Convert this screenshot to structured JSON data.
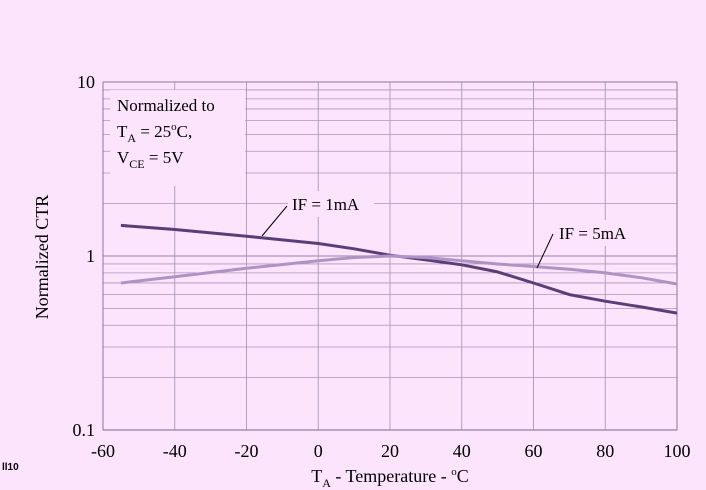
{
  "chart_data": {
    "type": "line",
    "title": "",
    "xlabel": {
      "main": "T",
      "sub": "A",
      "rest": " - Temperature - ",
      "sup": "o",
      "tail": "C"
    },
    "ylabel": "Normalized CTR",
    "y_scale": "log",
    "xlim": [
      -60,
      100
    ],
    "ylim": [
      0.1,
      10
    ],
    "x_ticks": [
      "-60",
      "-40",
      "-20",
      "0",
      "20",
      "40",
      "60",
      "80",
      "100"
    ],
    "y_ticks": [
      "0.1",
      "1",
      "10"
    ],
    "grid": true,
    "note": {
      "line1": "Normalized to",
      "line2": {
        "main": "T",
        "sub": "A",
        "rest": " = 25",
        "sup": "o",
        "tail": "C,"
      },
      "line3": {
        "main": "V",
        "sub": "CE",
        "rest": " = 5V"
      }
    },
    "series": [
      {
        "name": "IF = 1mA",
        "color": "#5b3e78",
        "x": [
          -55,
          -40,
          -20,
          0,
          10,
          20,
          30,
          40,
          50,
          60,
          70,
          80,
          90,
          100
        ],
        "y": [
          1.5,
          1.42,
          1.3,
          1.18,
          1.1,
          1.01,
          0.95,
          0.89,
          0.81,
          0.7,
          0.6,
          0.55,
          0.51,
          0.47
        ]
      },
      {
        "name": "IF = 5mA",
        "color": "#b093c4",
        "x": [
          -55,
          -40,
          -20,
          0,
          10,
          20,
          30,
          40,
          50,
          60,
          70,
          80,
          90,
          100
        ],
        "y": [
          0.7,
          0.76,
          0.85,
          0.94,
          0.98,
          1.0,
          0.98,
          0.94,
          0.9,
          0.87,
          0.84,
          0.8,
          0.75,
          0.69
        ]
      }
    ]
  },
  "figure_label": "ll10"
}
